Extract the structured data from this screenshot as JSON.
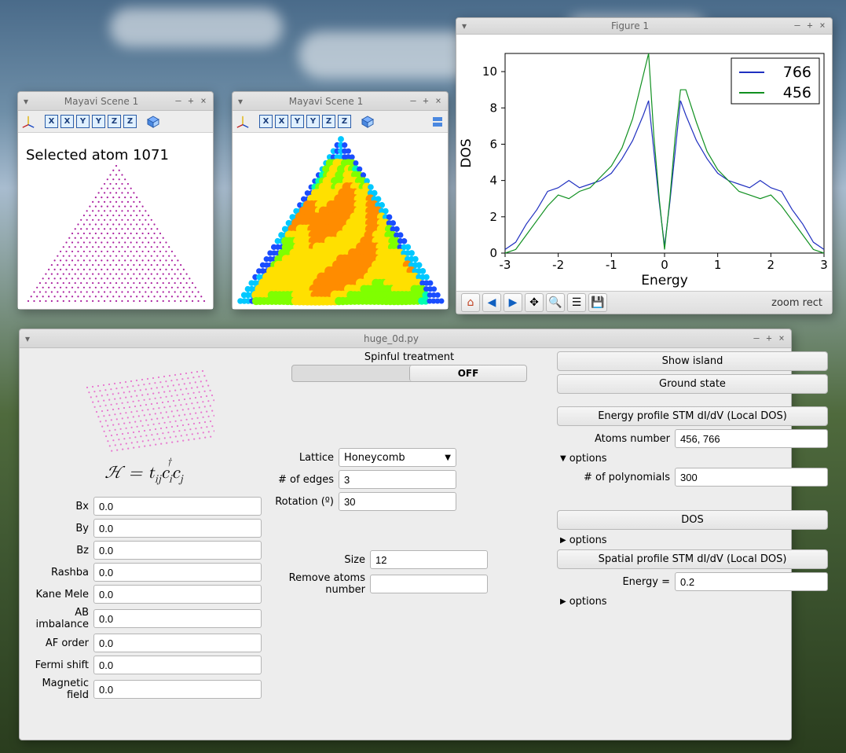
{
  "desktop": {
    "bg_top": "#4a6b8a",
    "bg_bottom": "#2a3d1e"
  },
  "mayavi1": {
    "title": "Mayavi Scene 1",
    "toolbar_buttons": [
      "X",
      "X",
      "Y",
      "Y",
      "Z",
      "Z"
    ],
    "label": "Selected atom 1071",
    "dot_color": "#aa1fa0",
    "bg": "#ffffff"
  },
  "mayavi2": {
    "title": "Mayavi Scene 1",
    "toolbar_buttons": [
      "X",
      "X",
      "Y",
      "Y",
      "Z",
      "Z"
    ],
    "heatmap_palette": [
      "#1a4dff",
      "#00c8ff",
      "#00ffb0",
      "#7fff00",
      "#ffe000",
      "#ff8c00",
      "#ff1e00"
    ],
    "bg": "#ffffff"
  },
  "figure": {
    "title": "Figure 1",
    "xlabel": "Energy",
    "ylabel": "DOS",
    "xlim": [
      -3,
      3
    ],
    "xticks": [
      -3,
      -2,
      -1,
      0,
      1,
      2,
      3
    ],
    "ylim": [
      0,
      11
    ],
    "yticks": [
      0,
      2,
      4,
      6,
      8,
      10
    ],
    "series": [
      {
        "name": "766",
        "color": "#2030c0",
        "width": 1.2,
        "points": [
          [
            -3.0,
            0.2
          ],
          [
            -2.8,
            0.6
          ],
          [
            -2.6,
            1.6
          ],
          [
            -2.4,
            2.4
          ],
          [
            -2.2,
            3.4
          ],
          [
            -2.0,
            3.6
          ],
          [
            -1.8,
            4.0
          ],
          [
            -1.6,
            3.6
          ],
          [
            -1.4,
            3.8
          ],
          [
            -1.2,
            4.0
          ],
          [
            -1.0,
            4.4
          ],
          [
            -0.8,
            5.2
          ],
          [
            -0.6,
            6.2
          ],
          [
            -0.4,
            7.6
          ],
          [
            -0.3,
            8.4
          ],
          [
            -0.2,
            5.6
          ],
          [
            -0.1,
            2.8
          ],
          [
            0.0,
            0.4
          ],
          [
            0.1,
            2.8
          ],
          [
            0.2,
            5.6
          ],
          [
            0.3,
            8.4
          ],
          [
            0.4,
            7.6
          ],
          [
            0.6,
            6.2
          ],
          [
            0.8,
            5.2
          ],
          [
            1.0,
            4.4
          ],
          [
            1.2,
            4.0
          ],
          [
            1.4,
            3.8
          ],
          [
            1.6,
            3.6
          ],
          [
            1.8,
            4.0
          ],
          [
            2.0,
            3.6
          ],
          [
            2.2,
            3.4
          ],
          [
            2.4,
            2.4
          ],
          [
            2.6,
            1.6
          ],
          [
            2.8,
            0.6
          ],
          [
            3.0,
            0.2
          ]
        ]
      },
      {
        "name": "456",
        "color": "#109020",
        "width": 1.2,
        "points": [
          [
            -3.0,
            0.0
          ],
          [
            -2.8,
            0.2
          ],
          [
            -2.6,
            1.0
          ],
          [
            -2.4,
            1.8
          ],
          [
            -2.2,
            2.6
          ],
          [
            -2.0,
            3.2
          ],
          [
            -1.8,
            3.0
          ],
          [
            -1.6,
            3.4
          ],
          [
            -1.4,
            3.6
          ],
          [
            -1.2,
            4.2
          ],
          [
            -1.0,
            4.8
          ],
          [
            -0.8,
            5.8
          ],
          [
            -0.6,
            7.4
          ],
          [
            -0.4,
            9.8
          ],
          [
            -0.3,
            11.0
          ],
          [
            -0.2,
            6.4
          ],
          [
            -0.1,
            3.0
          ],
          [
            0.0,
            0.2
          ],
          [
            0.1,
            3.0
          ],
          [
            0.2,
            6.4
          ],
          [
            0.3,
            9.0
          ],
          [
            0.4,
            9.0
          ],
          [
            0.6,
            7.2
          ],
          [
            0.8,
            5.6
          ],
          [
            1.0,
            4.6
          ],
          [
            1.2,
            4.0
          ],
          [
            1.4,
            3.4
          ],
          [
            1.6,
            3.2
          ],
          [
            1.8,
            3.0
          ],
          [
            2.0,
            3.2
          ],
          [
            2.2,
            2.6
          ],
          [
            2.4,
            1.8
          ],
          [
            2.6,
            1.0
          ],
          [
            2.8,
            0.2
          ],
          [
            3.0,
            0.0
          ]
        ]
      }
    ],
    "legend_pos": "upper-right",
    "toolbar_status": "zoom rect",
    "toolbar_icons": [
      "home",
      "back",
      "forward",
      "pan",
      "zoom",
      "subplots",
      "save"
    ]
  },
  "app": {
    "title": "huge_0d.py",
    "spinful_label": "Spinful treatment",
    "spinful_state": "OFF",
    "hamiltonian": "ℋ = t_{ij} c_i^† c_j",
    "left_fields": [
      {
        "label": "Bx",
        "value": "0.0"
      },
      {
        "label": "By",
        "value": "0.0"
      },
      {
        "label": "Bz",
        "value": "0.0"
      },
      {
        "label": "Rashba",
        "value": "0.0"
      },
      {
        "label": "Kane Mele",
        "value": "0.0"
      },
      {
        "label": "AB imbalance",
        "value": "0.0"
      },
      {
        "label": "AF order",
        "value": "0.0"
      },
      {
        "label": "Fermi shift",
        "value": "0.0"
      },
      {
        "label": "Magnetic field",
        "value": "0.0"
      }
    ],
    "mid": {
      "lattice_label": "Lattice",
      "lattice_value": "Honeycomb",
      "edges_label": "# of edges",
      "edges_value": "3",
      "rotation_label": "Rotation (º)",
      "rotation_value": "30",
      "size_label": "Size",
      "size_value": "12",
      "remove_label": "Remove atoms number",
      "remove_value": ""
    },
    "right": {
      "show_island": "Show island",
      "ground_state": "Ground state",
      "energy_profile": "Energy profile STM dI/dV (Local DOS)",
      "atoms_number_label": "Atoms number",
      "atoms_number_value": "456, 766",
      "options_label": "options",
      "poly_label": "# of polynomials",
      "poly_value": "300",
      "dos_btn": "DOS",
      "spatial_btn": "Spatial profile STM dI/dV (Local DOS)",
      "energy_label": "Energy =",
      "energy_value": "0.2"
    }
  }
}
